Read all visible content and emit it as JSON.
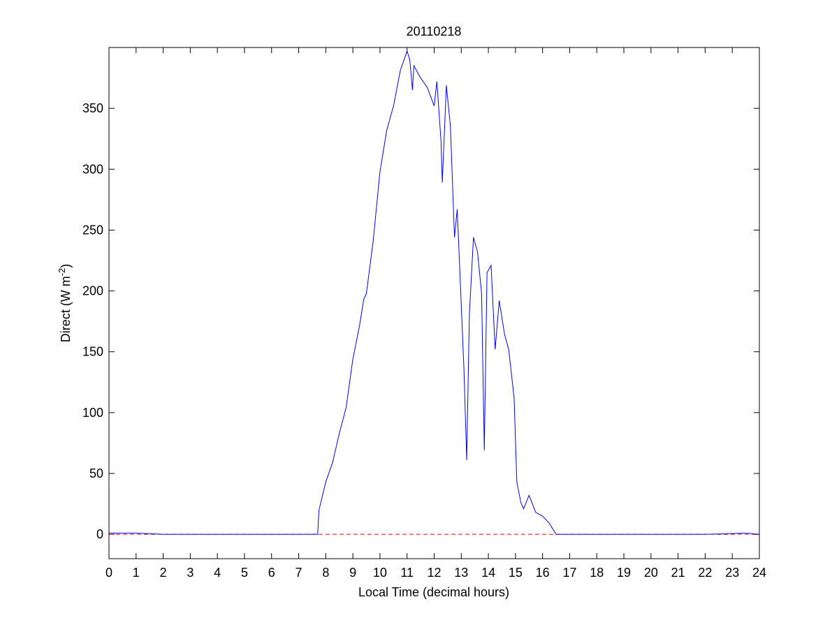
{
  "chart_data": {
    "type": "line",
    "title": "20110218",
    "xlabel": "Local Time (decimal hours)",
    "ylabel": [
      "Direct (W m",
      "-2",
      ")"
    ],
    "x": [
      0,
      0.5,
      1,
      2,
      3,
      4,
      5,
      6,
      7,
      7.7,
      7.75,
      8.0,
      8.25,
      8.5,
      8.75,
      9.0,
      9.25,
      9.4,
      9.5,
      9.75,
      10.0,
      10.25,
      10.5,
      10.75,
      11.0,
      11.1,
      11.2,
      11.25,
      11.5,
      11.75,
      12.0,
      12.1,
      12.25,
      12.3,
      12.45,
      12.6,
      12.75,
      12.85,
      12.95,
      13.1,
      13.2,
      13.3,
      13.45,
      13.6,
      13.75,
      13.85,
      13.95,
      14.1,
      14.25,
      14.4,
      14.6,
      14.75,
      14.95,
      15.05,
      15.2,
      15.3,
      15.5,
      15.75,
      16.0,
      16.25,
      16.5,
      17,
      18,
      20,
      22,
      23.5,
      24
    ],
    "series": [
      {
        "color": "#0000ff",
        "values": [
          1,
          1,
          1,
          0,
          0,
          0,
          0,
          0,
          0,
          0,
          20,
          43,
          59,
          83,
          104,
          144,
          172,
          193,
          198,
          241,
          298,
          332,
          352,
          381,
          397,
          390,
          365,
          385,
          375,
          367,
          352,
          372,
          324,
          289,
          369,
          335,
          244,
          267,
          215,
          135,
          61,
          181,
          244,
          232,
          198,
          69,
          215,
          221,
          152,
          192,
          164,
          152,
          112,
          43,
          26,
          21,
          32,
          18,
          15,
          9,
          0,
          0,
          0,
          0,
          0,
          1,
          0
        ]
      }
    ],
    "hlines": [
      {
        "y": 0,
        "color": "#ff0000",
        "dashed": true
      }
    ],
    "xlim": [
      0,
      24
    ],
    "xticks": [
      0,
      1,
      2,
      3,
      4,
      5,
      6,
      7,
      8,
      9,
      10,
      11,
      12,
      13,
      14,
      15,
      16,
      17,
      18,
      19,
      20,
      21,
      22,
      23,
      24
    ],
    "ylim": [
      -20,
      400
    ],
    "yticks": [
      0,
      50,
      100,
      150,
      200,
      250,
      300,
      350
    ]
  }
}
